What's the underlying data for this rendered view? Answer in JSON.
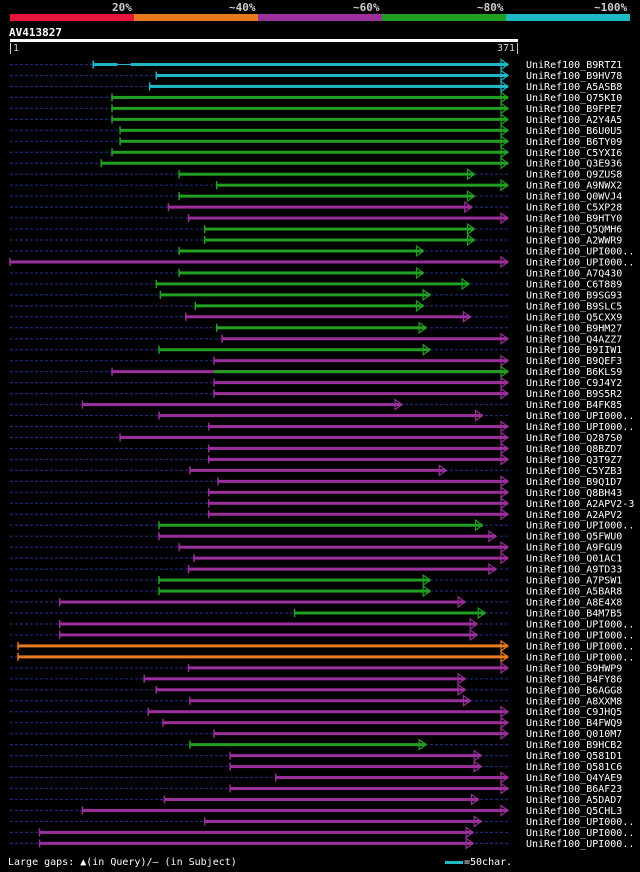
{
  "legend": {
    "labels": [
      "20%",
      "~40%",
      "~60%",
      "~80%",
      "~100%"
    ],
    "colors": [
      "#e8143c",
      "#e87a1f",
      "#9b2f9b",
      "#22a022",
      "#1fb9c6"
    ]
  },
  "query": {
    "name": "AV413827",
    "length": 371,
    "start_label": "1",
    "end_label": "371"
  },
  "colors": {
    "cyan": "#1fb9c6",
    "green": "#22a022",
    "purple": "#9b2f9b",
    "orange": "#e87a1f",
    "dashed": "#1c2a78",
    "gap_marker": "#f4f08a"
  },
  "hits": [
    {
      "label": "UniRef100_B9RTZ1",
      "color": "cyan",
      "start": 62,
      "end": 371,
      "bands": [
        [
          62,
          80
        ],
        [
          90,
          371
        ]
      ]
    },
    {
      "label": "UniRef100_B9HV78",
      "color": "cyan",
      "start": 109,
      "end": 371
    },
    {
      "label": "UniRef100_A5ASB8",
      "color": "cyan",
      "start": 104,
      "end": 371
    },
    {
      "label": "UniRef100_Q75KI0",
      "color": "green",
      "start": 76,
      "end": 371
    },
    {
      "label": "UniRef100_B9FPE7",
      "color": "green",
      "start": 76,
      "end": 371
    },
    {
      "label": "UniRef100_A2Y4A5",
      "color": "green",
      "start": 76,
      "end": 371
    },
    {
      "label": "UniRef100_B6U0U5",
      "color": "green",
      "start": 82,
      "end": 371
    },
    {
      "label": "UniRef100_B6TY09",
      "color": "green",
      "start": 82,
      "end": 371
    },
    {
      "label": "UniRef100_C5YXI6",
      "color": "green",
      "start": 76,
      "end": 371
    },
    {
      "label": "UniRef100_Q3E936",
      "color": "green",
      "start": 68,
      "end": 371
    },
    {
      "label": "UniRef100_Q9ZUS8",
      "color": "green",
      "start": 126,
      "end": 346
    },
    {
      "label": "UniRef100_A9NWX2",
      "color": "green",
      "start": 154,
      "end": 371
    },
    {
      "label": "UniRef100_Q0WVJ4",
      "color": "green",
      "start": 126,
      "end": 346
    },
    {
      "label": "UniRef100_C5XP28",
      "color": "purple",
      "start": 118,
      "end": 344
    },
    {
      "label": "UniRef100_B9HTY0",
      "color": "purple",
      "start": 133,
      "end": 371
    },
    {
      "label": "UniRef100_Q5QMH6",
      "color": "green",
      "start": 145,
      "end": 346
    },
    {
      "label": "UniRef100_A2WWR9",
      "color": "green",
      "start": 145,
      "end": 346
    },
    {
      "label": "UniRef100_UPI000..",
      "color": "green",
      "start": 126,
      "end": 308
    },
    {
      "label": "UniRef100_UPI000..",
      "color": "purple",
      "start": 0,
      "end": 371
    },
    {
      "label": "UniRef100_A7Q430",
      "color": "green",
      "start": 126,
      "end": 308
    },
    {
      "label": "UniRef100_C6T889",
      "color": "green",
      "start": 109,
      "end": 342
    },
    {
      "label": "UniRef100_B9SG93",
      "color": "green",
      "start": 112,
      "end": 313
    },
    {
      "label": "UniRef100_B9SLC5",
      "color": "green",
      "start": 138,
      "end": 308
    },
    {
      "label": "UniRef100_Q5CXX9",
      "color": "purple",
      "start": 131,
      "end": 343
    },
    {
      "label": "UniRef100_B9HM27",
      "color": "green",
      "start": 154,
      "end": 310
    },
    {
      "label": "UniRef100_Q4AZZ7",
      "color": "purple",
      "start": 158,
      "end": 371
    },
    {
      "label": "UniRef100_B9IIW1",
      "color": "green",
      "start": 111,
      "end": 313
    },
    {
      "label": "UniRef100_B9QEF3",
      "color": "purple",
      "start": 152,
      "end": 371
    },
    {
      "label": "UniRef100_B6KLS9",
      "color": "purple",
      "start": 76,
      "end": 371,
      "bands": [
        [
          152,
          371,
          "green"
        ]
      ]
    },
    {
      "label": "UniRef100_C9J4Y2",
      "color": "purple",
      "start": 152,
      "end": 371
    },
    {
      "label": "UniRef100_B9S5R2",
      "color": "purple",
      "start": 152,
      "end": 371
    },
    {
      "label": "UniRef100_B4FK85",
      "color": "purple",
      "start": 54,
      "end": 292
    },
    {
      "label": "UniRef100_UPI000..",
      "color": "purple",
      "start": 111,
      "end": 352
    },
    {
      "label": "UniRef100_UPI000..",
      "color": "purple",
      "start": 148,
      "end": 371
    },
    {
      "label": "UniRef100_Q287S0",
      "color": "purple",
      "start": 82,
      "end": 371
    },
    {
      "label": "UniRef100_Q8BZD7",
      "color": "purple",
      "start": 148,
      "end": 371
    },
    {
      "label": "UniRef100_Q3T9Z7",
      "color": "purple",
      "start": 148,
      "end": 371
    },
    {
      "label": "UniRef100_C5YZB3",
      "color": "purple",
      "start": 134,
      "end": 325
    },
    {
      "label": "UniRef100_B9Q1D7",
      "color": "purple",
      "start": 155,
      "end": 371
    },
    {
      "label": "UniRef100_Q8BH43",
      "color": "purple",
      "start": 148,
      "end": 371
    },
    {
      "label": "UniRef100_A2APV2-3",
      "color": "purple",
      "start": 148,
      "end": 371
    },
    {
      "label": "UniRef100_A2APV2",
      "color": "purple",
      "start": 148,
      "end": 371
    },
    {
      "label": "UniRef100_UPI000..",
      "color": "green",
      "start": 111,
      "end": 352
    },
    {
      "label": "UniRef100_Q5FWU0",
      "color": "purple",
      "start": 111,
      "end": 362
    },
    {
      "label": "UniRef100_A9FGU9",
      "color": "purple",
      "start": 126,
      "end": 371
    },
    {
      "label": "UniRef100_Q01AC1",
      "color": "purple",
      "start": 137,
      "end": 371
    },
    {
      "label": "UniRef100_A9TD33",
      "color": "purple",
      "start": 133,
      "end": 362
    },
    {
      "label": "UniRef100_A7PSW1",
      "color": "green",
      "start": 111,
      "end": 313
    },
    {
      "label": "UniRef100_A5BAR8",
      "color": "green",
      "start": 111,
      "end": 313
    },
    {
      "label": "UniRef100_A8E4X8",
      "color": "purple",
      "start": 37,
      "end": 339
    },
    {
      "label": "UniRef100_B4M7B5",
      "color": "green",
      "start": 212,
      "end": 354
    },
    {
      "label": "UniRef100_UPI000..",
      "color": "purple",
      "start": 37,
      "end": 348
    },
    {
      "label": "UniRef100_UPI000..",
      "color": "purple",
      "start": 37,
      "end": 348
    },
    {
      "label": "UniRef100_UPI000..",
      "color": "orange",
      "start": 6,
      "end": 371
    },
    {
      "label": "UniRef100_UPI000..",
      "color": "orange",
      "start": 6,
      "end": 371
    },
    {
      "label": "UniRef100_B9HWP9",
      "color": "purple",
      "start": 133,
      "end": 371
    },
    {
      "label": "UniRef100_B4FY86",
      "color": "purple",
      "start": 100,
      "end": 339
    },
    {
      "label": "UniRef100_B6AGG8",
      "color": "purple",
      "start": 109,
      "end": 339
    },
    {
      "label": "UniRef100_A8XXM8",
      "color": "purple",
      "start": 134,
      "end": 343
    },
    {
      "label": "UniRef100_C9JHQ5",
      "color": "purple",
      "start": 103,
      "end": 371
    },
    {
      "label": "UniRef100_B4FWQ9",
      "color": "purple",
      "start": 114,
      "end": 371
    },
    {
      "label": "UniRef100_Q010M7",
      "color": "purple",
      "start": 152,
      "end": 371
    },
    {
      "label": "UniRef100_B9HCB2",
      "color": "green",
      "start": 134,
      "end": 310
    },
    {
      "label": "UniRef100_Q581D1",
      "color": "purple",
      "start": 164,
      "end": 351
    },
    {
      "label": "UniRef100_Q581C6",
      "color": "purple",
      "start": 164,
      "end": 351
    },
    {
      "label": "UniRef100_Q4YAE9",
      "color": "purple",
      "start": 198,
      "end": 371
    },
    {
      "label": "UniRef100_B6AF23",
      "color": "purple",
      "start": 164,
      "end": 371
    },
    {
      "label": "UniRef100_A5DAD7",
      "color": "purple",
      "start": 115,
      "end": 349
    },
    {
      "label": "UniRef100_Q5CHL3",
      "color": "purple",
      "start": 54,
      "end": 371
    },
    {
      "label": "UniRef100_UPI000..",
      "color": "purple",
      "start": 145,
      "end": 351
    },
    {
      "label": "UniRef100_UPI000..",
      "color": "purple",
      "start": 22,
      "end": 345
    },
    {
      "label": "UniRef100_UPI000..",
      "color": "purple",
      "start": 22,
      "end": 345
    }
  ],
  "footer": {
    "gaps_text": "Large gaps: ▲(in Query)/— (in Subject)",
    "scale_text": "=50char."
  }
}
